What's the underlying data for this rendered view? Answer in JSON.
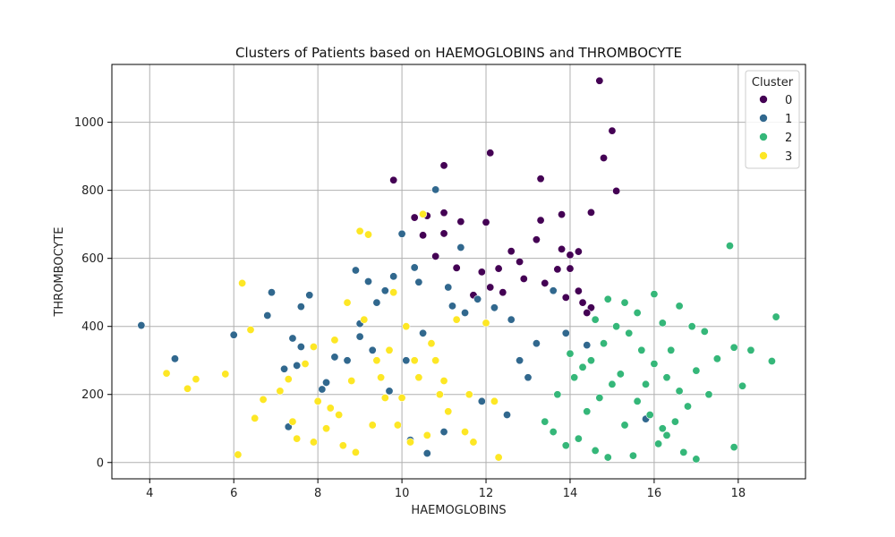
{
  "chart_data": {
    "type": "scatter",
    "title": "Clusters of Patients based on HAEMOGLOBINS and THROMBOCYTE",
    "xlabel": "HAEMOGLOBINS",
    "ylabel": "THROMBOCYTE",
    "xlim": [
      3.1,
      19.6
    ],
    "ylim": [
      -48,
      1170
    ],
    "xticks": [
      4,
      6,
      8,
      10,
      12,
      14,
      16,
      18
    ],
    "yticks": [
      0,
      200,
      400,
      600,
      800,
      1000
    ],
    "grid": true,
    "legend": {
      "title": "Cluster",
      "placement": "top-right"
    },
    "series": [
      {
        "name": "0",
        "color": "#440154",
        "points": [
          [
            14.7,
            1122
          ],
          [
            15.0,
            975
          ],
          [
            14.8,
            895
          ],
          [
            15.1,
            798
          ],
          [
            12.1,
            910
          ],
          [
            11.0,
            873
          ],
          [
            13.3,
            834
          ],
          [
            9.8,
            830
          ],
          [
            10.3,
            720
          ],
          [
            10.6,
            725
          ],
          [
            11.0,
            734
          ],
          [
            11.4,
            708
          ],
          [
            12.0,
            706
          ],
          [
            13.3,
            712
          ],
          [
            13.8,
            729
          ],
          [
            14.5,
            735
          ],
          [
            10.5,
            668
          ],
          [
            11.0,
            673
          ],
          [
            13.2,
            655
          ],
          [
            12.6,
            621
          ],
          [
            13.8,
            627
          ],
          [
            14.0,
            610
          ],
          [
            14.2,
            620
          ],
          [
            12.8,
            590
          ],
          [
            10.8,
            606
          ],
          [
            11.3,
            572
          ],
          [
            11.9,
            560
          ],
          [
            12.3,
            570
          ],
          [
            13.7,
            568
          ],
          [
            14.0,
            570
          ],
          [
            12.9,
            540
          ],
          [
            13.4,
            527
          ],
          [
            12.1,
            515
          ],
          [
            12.4,
            500
          ],
          [
            14.2,
            504
          ],
          [
            11.7,
            492
          ],
          [
            13.9,
            485
          ],
          [
            14.3,
            470
          ],
          [
            14.5,
            455
          ],
          [
            14.4,
            440
          ]
        ]
      },
      {
        "name": "1",
        "color": "#31688e",
        "points": [
          [
            3.8,
            403
          ],
          [
            4.6,
            305
          ],
          [
            6.0,
            375
          ],
          [
            6.8,
            432
          ],
          [
            6.9,
            500
          ],
          [
            7.6,
            458
          ],
          [
            7.8,
            492
          ],
          [
            7.2,
            275
          ],
          [
            7.4,
            365
          ],
          [
            7.5,
            285
          ],
          [
            7.3,
            105
          ],
          [
            7.6,
            340
          ],
          [
            8.1,
            215
          ],
          [
            8.4,
            310
          ],
          [
            8.9,
            565
          ],
          [
            9.0,
            408
          ],
          [
            9.2,
            532
          ],
          [
            9.4,
            470
          ],
          [
            9.6,
            505
          ],
          [
            9.8,
            547
          ],
          [
            10.0,
            672
          ],
          [
            10.3,
            573
          ],
          [
            10.4,
            530
          ],
          [
            10.8,
            802
          ],
          [
            11.4,
            632
          ],
          [
            10.2,
            66
          ],
          [
            10.6,
            27
          ],
          [
            11.0,
            90
          ],
          [
            11.2,
            460
          ],
          [
            11.5,
            440
          ],
          [
            9.0,
            370
          ],
          [
            8.7,
            300
          ],
          [
            9.7,
            210
          ],
          [
            10.5,
            380
          ],
          [
            11.1,
            515
          ],
          [
            11.8,
            480
          ],
          [
            12.2,
            455
          ],
          [
            12.6,
            420
          ],
          [
            13.6,
            505
          ],
          [
            13.2,
            350
          ],
          [
            12.8,
            300
          ],
          [
            13.0,
            250
          ],
          [
            11.9,
            180
          ],
          [
            12.5,
            140
          ],
          [
            13.9,
            380
          ],
          [
            14.4,
            345
          ],
          [
            15.8,
            128
          ],
          [
            8.2,
            235
          ],
          [
            9.3,
            330
          ],
          [
            10.1,
            300
          ]
        ]
      },
      {
        "name": "2",
        "color": "#35b779",
        "points": [
          [
            17.8,
            637
          ],
          [
            18.9,
            428
          ],
          [
            18.8,
            298
          ],
          [
            18.3,
            330
          ],
          [
            18.1,
            225
          ],
          [
            17.9,
            45
          ],
          [
            17.9,
            338
          ],
          [
            17.5,
            305
          ],
          [
            16.6,
            460
          ],
          [
            16.0,
            495
          ],
          [
            15.3,
            470
          ],
          [
            14.9,
            480
          ],
          [
            16.2,
            410
          ],
          [
            16.9,
            400
          ],
          [
            17.2,
            385
          ],
          [
            17.0,
            270
          ],
          [
            17.3,
            200
          ],
          [
            16.8,
            165
          ],
          [
            16.5,
            120
          ],
          [
            16.3,
            80
          ],
          [
            17.0,
            10
          ],
          [
            16.7,
            30
          ],
          [
            16.1,
            55
          ],
          [
            15.5,
            20
          ],
          [
            14.9,
            15
          ],
          [
            14.6,
            35
          ],
          [
            14.2,
            70
          ],
          [
            13.9,
            50
          ],
          [
            13.6,
            90
          ],
          [
            13.4,
            120
          ],
          [
            13.7,
            200
          ],
          [
            14.1,
            250
          ],
          [
            14.5,
            300
          ],
          [
            14.8,
            350
          ],
          [
            15.1,
            400
          ],
          [
            15.4,
            380
          ],
          [
            15.7,
            330
          ],
          [
            16.0,
            290
          ],
          [
            16.3,
            250
          ],
          [
            16.6,
            210
          ],
          [
            15.2,
            260
          ],
          [
            15.0,
            230
          ],
          [
            14.7,
            190
          ],
          [
            14.4,
            150
          ],
          [
            15.6,
            180
          ],
          [
            15.9,
            140
          ],
          [
            16.2,
            100
          ],
          [
            15.3,
            110
          ],
          [
            14.0,
            320
          ],
          [
            14.3,
            280
          ],
          [
            15.8,
            230
          ],
          [
            16.4,
            330
          ],
          [
            14.6,
            420
          ],
          [
            15.6,
            440
          ]
        ]
      },
      {
        "name": "3",
        "color": "#fde725",
        "points": [
          [
            4.4,
            262
          ],
          [
            4.9,
            217
          ],
          [
            5.1,
            245
          ],
          [
            5.8,
            260
          ],
          [
            6.1,
            23
          ],
          [
            6.2,
            527
          ],
          [
            6.4,
            390
          ],
          [
            6.5,
            130
          ],
          [
            6.7,
            185
          ],
          [
            7.1,
            210
          ],
          [
            7.3,
            245
          ],
          [
            7.4,
            120
          ],
          [
            7.5,
            70
          ],
          [
            7.7,
            290
          ],
          [
            7.9,
            60
          ],
          [
            8.0,
            180
          ],
          [
            8.2,
            100
          ],
          [
            8.5,
            140
          ],
          [
            8.7,
            470
          ],
          [
            8.9,
            30
          ],
          [
            9.0,
            680
          ],
          [
            9.2,
            670
          ],
          [
            9.3,
            110
          ],
          [
            9.5,
            250
          ],
          [
            9.7,
            330
          ],
          [
            9.8,
            500
          ],
          [
            10.0,
            190
          ],
          [
            10.1,
            400
          ],
          [
            10.3,
            300
          ],
          [
            10.5,
            730
          ],
          [
            10.6,
            80
          ],
          [
            10.7,
            350
          ],
          [
            10.9,
            200
          ],
          [
            11.1,
            150
          ],
          [
            11.3,
            420
          ],
          [
            11.5,
            90
          ],
          [
            11.7,
            60
          ],
          [
            12.0,
            410
          ],
          [
            12.3,
            15
          ],
          [
            12.2,
            180
          ],
          [
            8.4,
            360
          ],
          [
            8.8,
            240
          ],
          [
            9.1,
            420
          ],
          [
            9.4,
            300
          ],
          [
            9.9,
            110
          ],
          [
            10.2,
            60
          ],
          [
            10.4,
            250
          ],
          [
            10.8,
            300
          ],
          [
            11.0,
            240
          ],
          [
            11.6,
            200
          ],
          [
            7.9,
            340
          ],
          [
            8.3,
            160
          ],
          [
            8.6,
            50
          ],
          [
            9.6,
            190
          ]
        ]
      }
    ]
  }
}
